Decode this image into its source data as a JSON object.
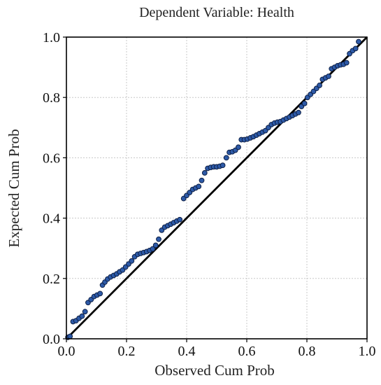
{
  "chart_data": {
    "type": "scatter",
    "title": "Dependent Variable: Health",
    "xlabel": "Observed Cum Prob",
    "ylabel": "Expected Cum Prob",
    "xlim": [
      0,
      1
    ],
    "ylim": [
      0,
      1
    ],
    "x_ticks": [
      "0.0",
      "0.2",
      "0.4",
      "0.6",
      "0.8",
      "1.0"
    ],
    "y_ticks": [
      "0.0",
      "0.2",
      "0.4",
      "0.6",
      "0.8",
      "1.0"
    ],
    "grid": true,
    "reference_line": [
      [
        0,
        0
      ],
      [
        1,
        1
      ]
    ],
    "point_color": "#2d5aa8",
    "points": [
      [
        0.005,
        0.005
      ],
      [
        0.012,
        0.008
      ],
      [
        0.022,
        0.057
      ],
      [
        0.032,
        0.06
      ],
      [
        0.042,
        0.068
      ],
      [
        0.052,
        0.075
      ],
      [
        0.062,
        0.09
      ],
      [
        0.072,
        0.12
      ],
      [
        0.082,
        0.13
      ],
      [
        0.092,
        0.14
      ],
      [
        0.102,
        0.145
      ],
      [
        0.112,
        0.15
      ],
      [
        0.12,
        0.178
      ],
      [
        0.128,
        0.188
      ],
      [
        0.137,
        0.198
      ],
      [
        0.147,
        0.205
      ],
      [
        0.157,
        0.21
      ],
      [
        0.167,
        0.215
      ],
      [
        0.177,
        0.222
      ],
      [
        0.187,
        0.228
      ],
      [
        0.197,
        0.238
      ],
      [
        0.207,
        0.248
      ],
      [
        0.217,
        0.258
      ],
      [
        0.227,
        0.272
      ],
      [
        0.237,
        0.28
      ],
      [
        0.247,
        0.283
      ],
      [
        0.257,
        0.286
      ],
      [
        0.267,
        0.289
      ],
      [
        0.277,
        0.293
      ],
      [
        0.287,
        0.298
      ],
      [
        0.297,
        0.31
      ],
      [
        0.307,
        0.33
      ],
      [
        0.317,
        0.36
      ],
      [
        0.327,
        0.37
      ],
      [
        0.337,
        0.375
      ],
      [
        0.347,
        0.38
      ],
      [
        0.357,
        0.385
      ],
      [
        0.367,
        0.39
      ],
      [
        0.377,
        0.395
      ],
      [
        0.39,
        0.465
      ],
      [
        0.4,
        0.475
      ],
      [
        0.41,
        0.485
      ],
      [
        0.42,
        0.495
      ],
      [
        0.43,
        0.5
      ],
      [
        0.44,
        0.505
      ],
      [
        0.45,
        0.525
      ],
      [
        0.46,
        0.55
      ],
      [
        0.47,
        0.565
      ],
      [
        0.48,
        0.568
      ],
      [
        0.49,
        0.57
      ],
      [
        0.5,
        0.57
      ],
      [
        0.51,
        0.572
      ],
      [
        0.52,
        0.575
      ],
      [
        0.532,
        0.6
      ],
      [
        0.542,
        0.618
      ],
      [
        0.552,
        0.62
      ],
      [
        0.562,
        0.625
      ],
      [
        0.572,
        0.635
      ],
      [
        0.582,
        0.66
      ],
      [
        0.592,
        0.66
      ],
      [
        0.602,
        0.662
      ],
      [
        0.612,
        0.666
      ],
      [
        0.622,
        0.67
      ],
      [
        0.632,
        0.675
      ],
      [
        0.642,
        0.68
      ],
      [
        0.652,
        0.685
      ],
      [
        0.662,
        0.69
      ],
      [
        0.672,
        0.7
      ],
      [
        0.682,
        0.71
      ],
      [
        0.692,
        0.715
      ],
      [
        0.702,
        0.718
      ],
      [
        0.712,
        0.72
      ],
      [
        0.722,
        0.725
      ],
      [
        0.732,
        0.73
      ],
      [
        0.742,
        0.735
      ],
      [
        0.752,
        0.74
      ],
      [
        0.762,
        0.745
      ],
      [
        0.772,
        0.75
      ],
      [
        0.782,
        0.77
      ],
      [
        0.792,
        0.78
      ],
      [
        0.802,
        0.8
      ],
      [
        0.812,
        0.81
      ],
      [
        0.822,
        0.82
      ],
      [
        0.832,
        0.83
      ],
      [
        0.842,
        0.84
      ],
      [
        0.852,
        0.86
      ],
      [
        0.862,
        0.865
      ],
      [
        0.872,
        0.87
      ],
      [
        0.882,
        0.895
      ],
      [
        0.892,
        0.9
      ],
      [
        0.902,
        0.905
      ],
      [
        0.912,
        0.908
      ],
      [
        0.922,
        0.91
      ],
      [
        0.932,
        0.915
      ],
      [
        0.942,
        0.945
      ],
      [
        0.952,
        0.955
      ],
      [
        0.962,
        0.962
      ],
      [
        0.972,
        0.985
      ]
    ]
  }
}
